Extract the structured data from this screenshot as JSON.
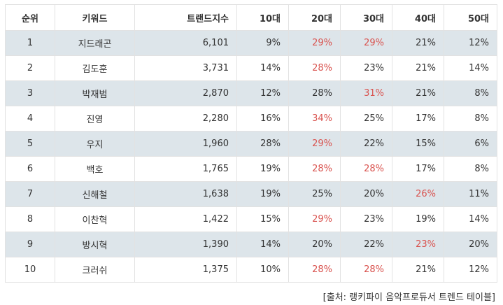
{
  "table": {
    "headers": {
      "rank": "순위",
      "keyword": "키워드",
      "trend_index": "트랜드지수",
      "age_10": "10대",
      "age_20": "20대",
      "age_30": "30대",
      "age_40": "40대",
      "age_50": "50대"
    },
    "highlight_color": "#d9534f",
    "shaded_row_color": "#dde5ea",
    "rows": [
      {
        "rank": "1",
        "keyword": "지드래곤",
        "trend_index": "6,101",
        "age_10": "9%",
        "age_20": "29%",
        "age_30": "29%",
        "age_40": "21%",
        "age_50": "12%",
        "highlighted": [
          "age_20",
          "age_30"
        ]
      },
      {
        "rank": "2",
        "keyword": "김도훈",
        "trend_index": "3,731",
        "age_10": "14%",
        "age_20": "28%",
        "age_30": "23%",
        "age_40": "21%",
        "age_50": "14%",
        "highlighted": [
          "age_20"
        ]
      },
      {
        "rank": "3",
        "keyword": "박재범",
        "trend_index": "2,870",
        "age_10": "12%",
        "age_20": "28%",
        "age_30": "31%",
        "age_40": "21%",
        "age_50": "8%",
        "highlighted": [
          "age_30"
        ]
      },
      {
        "rank": "4",
        "keyword": "진영",
        "trend_index": "2,280",
        "age_10": "16%",
        "age_20": "34%",
        "age_30": "25%",
        "age_40": "17%",
        "age_50": "8%",
        "highlighted": [
          "age_20"
        ]
      },
      {
        "rank": "5",
        "keyword": "우지",
        "trend_index": "1,960",
        "age_10": "28%",
        "age_20": "29%",
        "age_30": "22%",
        "age_40": "15%",
        "age_50": "6%",
        "highlighted": [
          "age_20"
        ]
      },
      {
        "rank": "6",
        "keyword": "백호",
        "trend_index": "1,765",
        "age_10": "19%",
        "age_20": "28%",
        "age_30": "28%",
        "age_40": "17%",
        "age_50": "8%",
        "highlighted": [
          "age_20",
          "age_30"
        ]
      },
      {
        "rank": "7",
        "keyword": "신해철",
        "trend_index": "1,638",
        "age_10": "19%",
        "age_20": "25%",
        "age_30": "20%",
        "age_40": "26%",
        "age_50": "11%",
        "highlighted": [
          "age_40"
        ]
      },
      {
        "rank": "8",
        "keyword": "이찬혁",
        "trend_index": "1,422",
        "age_10": "15%",
        "age_20": "29%",
        "age_30": "23%",
        "age_40": "19%",
        "age_50": "14%",
        "highlighted": [
          "age_20"
        ]
      },
      {
        "rank": "9",
        "keyword": "방시혁",
        "trend_index": "1,390",
        "age_10": "14%",
        "age_20": "20%",
        "age_30": "22%",
        "age_40": "23%",
        "age_50": "20%",
        "highlighted": [
          "age_40"
        ]
      },
      {
        "rank": "10",
        "keyword": "크러쉬",
        "trend_index": "1,375",
        "age_10": "10%",
        "age_20": "28%",
        "age_30": "28%",
        "age_40": "21%",
        "age_50": "12%",
        "highlighted": [
          "age_20",
          "age_30"
        ]
      }
    ]
  },
  "source_note": "[출처: 랭키파이 음악프로듀서 트렌드 테이블]"
}
